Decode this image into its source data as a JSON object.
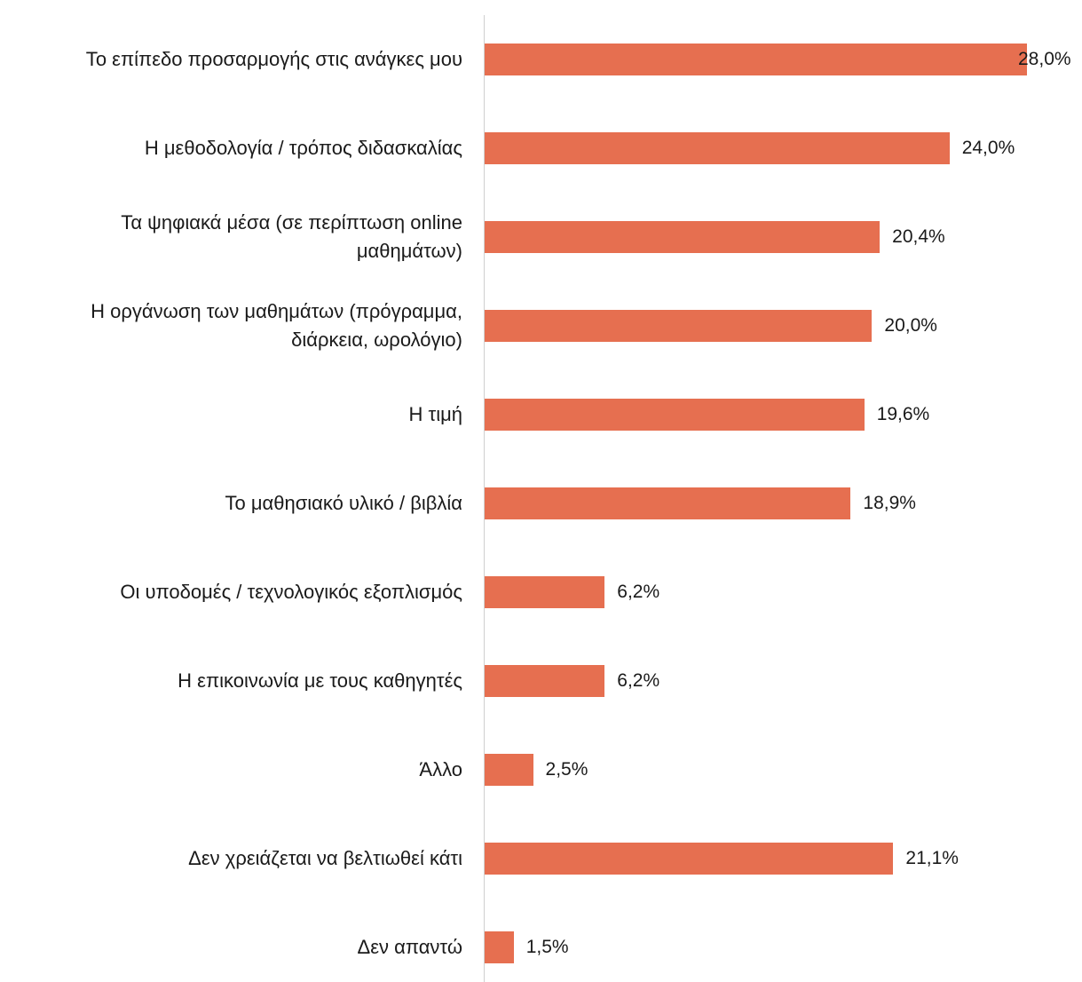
{
  "chart_data": {
    "type": "barh",
    "categories": [
      "Το επίπεδο προσαρμογής στις ανάγκες μου",
      "Η μεθοδολογία / τρόπος διδασκαλίας",
      "Τα ψηφιακά μέσα (σε περίπτωση online\nμαθημάτων)",
      "Η οργάνωση των μαθημάτων (πρόγραμμα,\nδιάρκεια, ωρολόγιο)",
      "Η τιμή",
      "Το μαθησιακό υλικό / βιβλία",
      "Οι υποδομές / τεχνολογικός εξοπλισμός",
      "Η επικοινωνία με τους καθηγητές",
      "Άλλο",
      "Δεν χρειάζεται να βελτιωθεί κάτι",
      "Δεν απαντώ"
    ],
    "values": [
      28.0,
      24.0,
      20.4,
      20.0,
      19.6,
      18.9,
      6.2,
      6.2,
      2.5,
      21.1,
      1.5
    ],
    "value_labels": [
      "28,0%",
      "24,0%",
      "20,4%",
      "20,0%",
      "19,6%",
      "18,9%",
      "6,2%",
      "6,2%",
      "2,5%",
      "21,1%",
      "1,5%"
    ],
    "color": "#e66f50"
  }
}
